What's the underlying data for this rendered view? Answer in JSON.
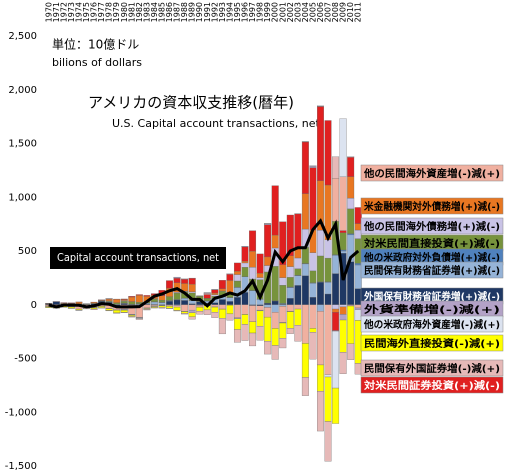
{
  "chart_data": {
    "type": "stacked-bar",
    "title": "アメリカの資本収支推移(暦年)",
    "subtitle": "U.S. Capital account transactions, net",
    "unit_label": "単位：10億ドル",
    "unit_label_en": "bilions of dollars",
    "categories": [
      "1970",
      "1971",
      "1972",
      "1973",
      "1974",
      "1975",
      "1976",
      "1977",
      "1978",
      "1979",
      "1980",
      "1981",
      "1982",
      "1983",
      "1984",
      "1985",
      "1986",
      "1987",
      "1988",
      "1989",
      "1990",
      "1991",
      "1992",
      "1993",
      "1994",
      "1995",
      "1996",
      "1997",
      "1998",
      "1999",
      "2000",
      "2001",
      "2002",
      "2003",
      "2004",
      "2005",
      "2006",
      "2007",
      "2008",
      "2009",
      "2010",
      "2011"
    ],
    "ylim": [
      -1500,
      2500
    ],
    "yticks": [
      {
        "value": -1500,
        "label": "-1,500"
      },
      {
        "value": -1000,
        "label": "-1,000"
      },
      -500,
      0,
      500,
      {
        "value": 1000,
        "label": "1,000"
      },
      {
        "value": 1500,
        "label": "1,500"
      },
      {
        "value": 2000,
        "label": "2,000"
      },
      {
        "value": 2500,
        "label": "2,500"
      }
    ],
    "series": [
      {
        "name": "他の民間海外資産増(-)減(+)",
        "color": "#f0b0a0",
        "values": [
          -10,
          -12,
          -12,
          -20,
          -40,
          -14,
          -21,
          -12,
          -33,
          -26,
          -40,
          -85,
          -110,
          -30,
          -10,
          -3,
          -10,
          -15,
          -60,
          -50,
          -15,
          10,
          -20,
          -40,
          -5,
          -120,
          -90,
          -150,
          -40,
          -90,
          -150,
          -150,
          -60,
          -40,
          -360,
          -220,
          -500,
          -650,
          400,
          500,
          -10,
          -30
        ]
      },
      {
        "name": "米金融機関対外債務増(+)減(-)",
        "color": "#e87722",
        "values": [
          -6,
          -7,
          5,
          4,
          16,
          0,
          11,
          6,
          17,
          32,
          10,
          42,
          65,
          50,
          34,
          41,
          79,
          89,
          71,
          71,
          -3,
          -10,
          15,
          20,
          111,
          31,
          16,
          150,
          40,
          80,
          120,
          120,
          100,
          100,
          330,
          210,
          460,
          510,
          -30,
          -70,
          200,
          60
        ]
      },
      {
        "name": "他の民間海外債務増(+)減(-)",
        "color": "#c9c3e6",
        "values": [
          2,
          0,
          0,
          1,
          1,
          0,
          0,
          1,
          2,
          2,
          6,
          1,
          -3,
          0,
          4,
          0,
          -2,
          7,
          7,
          10,
          1,
          1,
          14,
          1,
          1,
          60,
          40,
          110,
          20,
          60,
          170,
          70,
          100,
          100,
          170,
          170,
          240,
          170,
          -40,
          -20,
          100,
          80
        ]
      },
      {
        "name": "対米民間直接投資(+)減(-)",
        "color": "#77933c",
        "values": [
          1,
          0,
          1,
          3,
          5,
          3,
          4,
          4,
          8,
          12,
          17,
          25,
          13,
          12,
          25,
          20,
          36,
          60,
          58,
          69,
          48,
          23,
          20,
          51,
          46,
          58,
          87,
          106,
          180,
          290,
          320,
          170,
          90,
          60,
          150,
          110,
          240,
          220,
          310,
          160,
          230,
          230
        ]
      },
      {
        "name": "他の米政府対外負債増(+)減(-)",
        "color": "#4f81bd",
        "values": [
          0,
          0,
          0,
          0,
          0,
          0,
          0,
          0,
          0,
          0,
          2,
          2,
          3,
          1,
          2,
          3,
          2,
          4,
          1,
          2,
          2,
          2,
          3,
          2,
          3,
          2,
          2,
          3,
          3,
          2,
          3,
          6,
          5,
          5,
          4,
          5,
          4,
          4,
          6,
          10,
          12,
          15
        ]
      },
      {
        "name": "民間保有財務省証券増(+)減(-)",
        "color": "#95b3d7",
        "values": [
          0,
          0,
          0,
          0,
          0,
          0,
          0,
          0,
          2,
          5,
          3,
          2,
          7,
          9,
          23,
          20,
          4,
          -7,
          21,
          30,
          -3,
          19,
          38,
          25,
          34,
          92,
          145,
          130,
          50,
          -25,
          -70,
          -15,
          100,
          90,
          110,
          130,
          -60,
          110,
          170,
          20,
          250,
          220
        ]
      },
      {
        "name": "外国保有財務省証券増(+)減(-)",
        "color": "#1f3864",
        "values": [
          7,
          27,
          10,
          6,
          3,
          5,
          9,
          32,
          24,
          -20,
          11,
          -4,
          -5,
          6,
          3,
          -1,
          34,
          45,
          40,
          9,
          29,
          15,
          19,
          49,
          31,
          69,
          115,
          -7,
          -10,
          13,
          35,
          6,
          60,
          180,
          270,
          70,
          210,
          100,
          290,
          480,
          400,
          150
        ]
      },
      {
        "name": "外貨準備増(-)減(+)",
        "color": "#b3a2c7",
        "values": [
          3,
          2,
          0,
          0,
          -2,
          -1,
          -3,
          0,
          1,
          -1,
          -7,
          -5,
          -5,
          -1,
          -3,
          -4,
          0,
          9,
          -4,
          -25,
          -2,
          6,
          4,
          -1,
          5,
          -10,
          7,
          -1,
          -7,
          9,
          0,
          -5,
          -4,
          2,
          3,
          14,
          2,
          0,
          -5,
          -52,
          -2,
          -16
        ]
      },
      {
        "name": "他の米政府海外資産増(-)減(+)",
        "color": "#dce3f0",
        "values": [
          -2,
          -2,
          -2,
          -2,
          0,
          -4,
          -4,
          -4,
          -4,
          -4,
          -5,
          -5,
          -6,
          -5,
          -5,
          -3,
          -2,
          1,
          3,
          1,
          2,
          3,
          -2,
          0,
          0,
          -1,
          -1,
          0,
          0,
          3,
          0,
          0,
          0,
          0,
          2,
          6,
          5,
          -22,
          -530,
          540,
          7,
          -100
        ]
      },
      {
        "name": "民間海外直接投資(-)減(+)",
        "color": "#ffff00",
        "values": [
          -8,
          -11,
          -9,
          -12,
          -9,
          -14,
          -11,
          -11,
          -16,
          -25,
          -19,
          -10,
          -1,
          -6,
          -8,
          -14,
          -18,
          -31,
          -16,
          -37,
          -37,
          -38,
          -48,
          -84,
          -80,
          -99,
          -92,
          -105,
          -143,
          -224,
          -159,
          -142,
          -155,
          -150,
          -316,
          -36,
          -245,
          -414,
          -330,
          -300,
          -350,
          -400
        ]
      },
      {
        "name": "民間保有外国証券増(-)減(+)",
        "color": "#e6b9b8",
        "values": [
          -1,
          -1,
          -1,
          -1,
          -2,
          -6,
          -8,
          -5,
          -4,
          -4,
          -4,
          -6,
          -8,
          -7,
          -5,
          -8,
          -4,
          -5,
          -7,
          -22,
          -29,
          -45,
          -50,
          -146,
          -60,
          -120,
          -150,
          -120,
          -130,
          -120,
          -130,
          -90,
          -50,
          -150,
          -170,
          -250,
          -370,
          -370,
          200,
          -200,
          -150,
          -100
        ]
      },
      {
        "name": "対米民間証券投資(+)減(-)",
        "color": "#e02020",
        "values": [
          2,
          2,
          4,
          4,
          1,
          2,
          1,
          3,
          4,
          2,
          5,
          7,
          7,
          9,
          13,
          51,
          70,
          42,
          40,
          56,
          1,
          35,
          30,
          80,
          57,
          77,
          133,
          190,
          180,
          300,
          460,
          400,
          380,
          310,
          480,
          580,
          690,
          600,
          -170,
          20,
          180,
          150
        ]
      }
    ],
    "line": {
      "name": "Capital account transactions, net",
      "color": "#000000",
      "values": [
        -2,
        -20,
        -4,
        -4,
        -5,
        -20,
        -10,
        10,
        5,
        -20,
        -20,
        -20,
        -18,
        30,
        80,
        100,
        130,
        150,
        110,
        50,
        50,
        -10,
        60,
        80,
        110,
        90,
        130,
        220,
        70,
        230,
        490,
        400,
        500,
        530,
        530,
        700,
        780,
        620,
        750,
        230,
        440,
        500
      ]
    }
  }
}
